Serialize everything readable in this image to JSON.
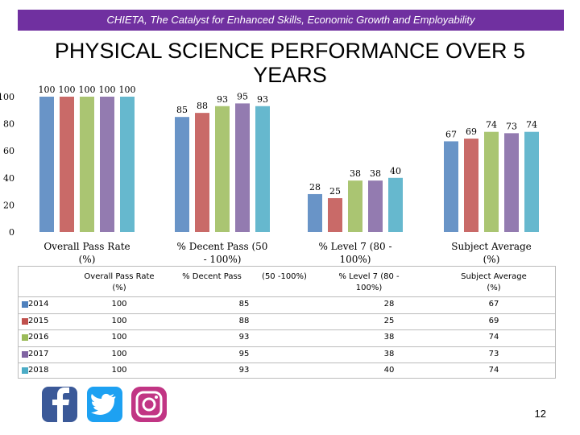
{
  "header": "CHIETA, The Catalyst for Enhanced Skills, Economic Growth and Employability",
  "chart_data": {
    "type": "bar",
    "title": "PHYSICAL SCIENCE PERFORMANCE OVER 5 YEARS",
    "categories": [
      "Overall Pass Rate (%)",
      "% Decent Pass (50 - 100%)",
      "% Level 7 (80 - 100%)",
      "Subject Average (%)"
    ],
    "series": [
      {
        "name": "2014",
        "color": "#4f81bd",
        "values": [
          100,
          85,
          28,
          67
        ]
      },
      {
        "name": "2015",
        "color": "#c0504d",
        "values": [
          100,
          88,
          25,
          69
        ]
      },
      {
        "name": "2016",
        "color": "#9bbb59",
        "values": [
          100,
          93,
          38,
          74
        ]
      },
      {
        "name": "2017",
        "color": "#8064a2",
        "values": [
          100,
          95,
          38,
          73
        ]
      },
      {
        "name": "2018",
        "color": "#4bacc6",
        "values": [
          100,
          93,
          40,
          74
        ]
      }
    ],
    "ylim": [
      0,
      100
    ],
    "yticks": [
      0,
      20,
      40,
      60,
      80,
      100
    ]
  },
  "table": {
    "columns": [
      "Overall Pass Rate (%)",
      "% Decent Pass",
      "(50 -100%)",
      "% Level 7 (80 - 100%)",
      "Subject Average (%)"
    ]
  },
  "page_number": "12"
}
